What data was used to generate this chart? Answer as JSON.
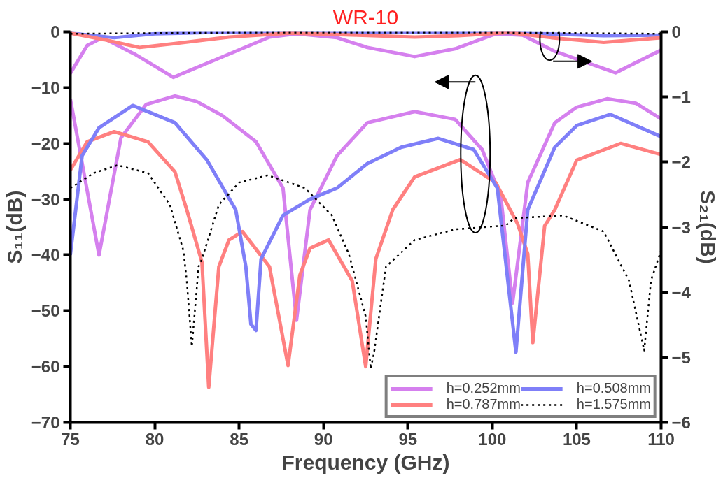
{
  "chart_data": {
    "type": "line",
    "title": "WR-10",
    "xlabel": "Frequency (GHz)",
    "ylabel": "S₁₁(dB)",
    "y2label": "S₂₁(dB)",
    "xlim": [
      75,
      110
    ],
    "xticks": [
      75,
      80,
      85,
      90,
      95,
      100,
      105,
      110
    ],
    "ylim": [
      -70,
      0
    ],
    "yticks": [
      -70,
      -60,
      -50,
      -40,
      -30,
      -20,
      -10,
      0
    ],
    "y2lim": [
      -6,
      0
    ],
    "y2ticks": [
      -6,
      -5,
      -4,
      -3,
      -2,
      -1,
      0
    ],
    "grid": false,
    "legend": "bottom right",
    "marker": "none",
    "line_style": "solid",
    "series": [
      {
        "name": "h=0.252mm",
        "color": "#d580ee",
        "x": [
          75,
          76.7,
          78.0,
          79.5,
          81.2,
          82.5,
          84.0,
          86.0,
          87.6,
          88.4,
          89.2,
          90.8,
          92.6,
          95.4,
          97.8,
          99.4,
          100.5,
          101.2,
          102.1,
          103.7,
          105.0,
          106.8,
          108.5,
          110
        ],
        "values": [
          -12.0,
          -40.0,
          -19.0,
          -13.0,
          -11.5,
          -12.5,
          -15.0,
          -19.7,
          -28.0,
          -51.7,
          -31.9,
          -22.2,
          -16.3,
          -14.3,
          -15.7,
          -21.1,
          -29.5,
          -48.6,
          -27.0,
          -16.3,
          -13.5,
          -12.0,
          -12.8,
          -15.6
        ]
      },
      {
        "name": "h=0.787mm",
        "color": "#ff8080",
        "x": [
          75,
          76.0,
          77.6,
          79.6,
          81.2,
          81.9,
          82.8,
          83.2,
          83.8,
          84.4,
          85.2,
          86.8,
          87.9,
          88.6,
          89.2,
          90.3,
          91.7,
          92.5,
          93.1,
          94.1,
          95.4,
          98.1,
          100.2,
          101.5,
          102.1,
          102.4,
          103.1,
          103.7,
          105.0,
          107.6,
          110
        ],
        "values": [
          -24.8,
          -19.7,
          -17.9,
          -19.7,
          -25.1,
          -31.9,
          -41.3,
          -63.7,
          -42.1,
          -37.3,
          -35.8,
          -42.1,
          -59.8,
          -43.6,
          -38.8,
          -37.3,
          -44.6,
          -60.0,
          -40.7,
          -31.9,
          -26.0,
          -22.9,
          -27.0,
          -34.4,
          -39.8,
          -55.7,
          -34.8,
          -31.9,
          -23.0,
          -20.0,
          -22.0
        ]
      },
      {
        "name": "h=0.508mm",
        "color": "#7f7ff8",
        "x": [
          75,
          75.7,
          76.7,
          78.7,
          81.2,
          83.1,
          84.8,
          85.4,
          85.7,
          86.0,
          86.3,
          87.6,
          89.2,
          90.8,
          92.6,
          94.6,
          96.8,
          98.9,
          100.3,
          101.4,
          102.1,
          103.7,
          105.0,
          107.0,
          110
        ],
        "values": [
          -40.0,
          -22.2,
          -17.2,
          -13.2,
          -16.3,
          -23.0,
          -31.9,
          -42.1,
          -52.4,
          -53.5,
          -40.7,
          -32.9,
          -30.0,
          -28.0,
          -23.6,
          -20.7,
          -19.1,
          -21.1,
          -28.0,
          -57.4,
          -31.9,
          -20.7,
          -16.8,
          -14.8,
          -18.8
        ]
      },
      {
        "name": "h=1.575mm",
        "color": "#000000",
        "line_style": "dotted",
        "x": [
          75,
          76.4,
          77.8,
          79.6,
          80.9,
          81.7,
          81.9,
          82.2,
          82.6,
          82.8,
          83.8,
          85.0,
          86.7,
          88.9,
          90.5,
          91.5,
          92.5,
          92.8,
          93.0,
          93.7,
          95.4,
          97.8,
          100.8,
          101.3,
          104.2,
          106.6,
          108.1,
          109.0,
          109.4,
          110
        ],
        "values": [
          -28.0,
          -25.3,
          -23.9,
          -25.3,
          -31.0,
          -39.2,
          -44.6,
          -56.4,
          -42.1,
          -40.7,
          -31.0,
          -27.0,
          -25.7,
          -28.0,
          -32.9,
          -39.8,
          -51.0,
          -60.4,
          -57.4,
          -42.1,
          -37.3,
          -35.4,
          -34.7,
          -33.4,
          -32.9,
          -35.8,
          -44.6,
          -57.1,
          -44.6,
          -39.2
        ]
      },
      {
        "color": "#d580ee",
        "axis": "y2",
        "x": [
          75,
          76,
          76.9,
          78.8,
          81.1,
          83.6,
          86.8,
          88.4,
          90.8,
          92.6,
          95.4,
          97.8,
          100.2,
          101.8,
          103.7,
          107.3,
          110
        ],
        "values": [
          -0.64,
          -0.21,
          -0.09,
          -0.34,
          -0.7,
          -0.43,
          -0.08,
          -0.03,
          -0.09,
          -0.24,
          -0.38,
          -0.26,
          -0.03,
          -0.05,
          -0.3,
          -0.63,
          -0.28
        ]
      },
      {
        "color": "#7f7ff8",
        "axis": "y2",
        "x": [
          75,
          77.6,
          80,
          83,
          90,
          95,
          100,
          103,
          106.6,
          110
        ],
        "values": [
          -0.02,
          -0.09,
          -0.03,
          -0.01,
          -0.01,
          -0.01,
          -0.01,
          -0.03,
          -0.06,
          -0.05
        ]
      },
      {
        "color": "#ff8080",
        "axis": "y2",
        "x": [
          75,
          77,
          79.1,
          81.2,
          84.4,
          88,
          92,
          95.4,
          98,
          101,
          103.5,
          106.6,
          110
        ],
        "values": [
          -0.02,
          -0.12,
          -0.24,
          -0.18,
          -0.08,
          -0.02,
          -0.05,
          -0.08,
          -0.06,
          -0.01,
          -0.09,
          -0.16,
          -0.09
        ]
      },
      {
        "color": "#000000",
        "axis": "y2",
        "line_style": "dotted",
        "x": [
          75,
          80,
          85,
          90,
          95,
          100,
          105,
          110
        ],
        "values": [
          -0.03,
          -0.02,
          -0.01,
          -0.01,
          -0.01,
          -0.01,
          -0.02,
          -0.03
        ]
      }
    ]
  }
}
